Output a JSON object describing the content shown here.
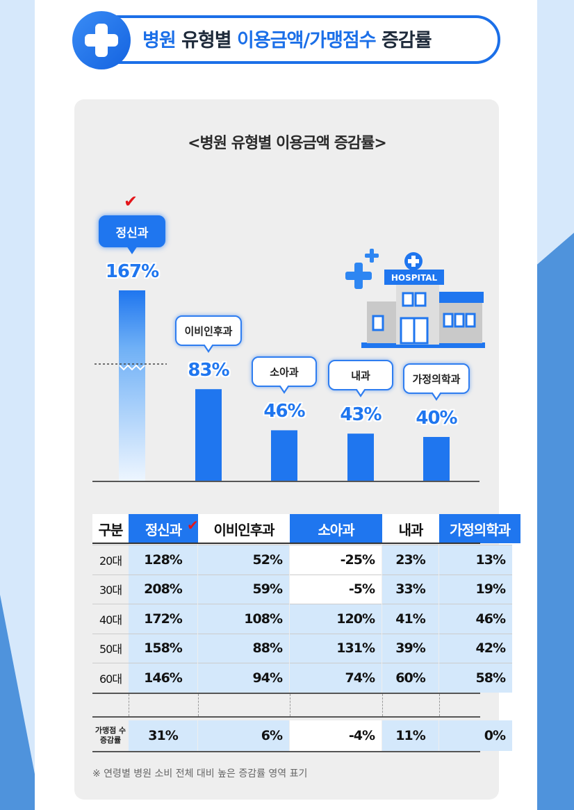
{
  "header": {
    "title_part1": "병원",
    "title_part2": " 유형별 ",
    "title_part3": "이용금액/가맹점수",
    "title_part4": " 증감률"
  },
  "chart_title": "<병원 유형별 이용금액 증감률>",
  "hospital_sign": "HOSPITAL",
  "colors": {
    "primary_blue": "#1f76ef",
    "header_blue": "#1b6fe8",
    "light_blue_cell": "#d4e8fb",
    "check_red": "#e3151a",
    "panel_gray": "#eeeeee"
  },
  "chart_data": {
    "type": "bar",
    "title": "<병원 유형별 이용금액 증감률>",
    "categories": [
      "정신과",
      "이비인후과",
      "소아과",
      "내과",
      "가정의학과"
    ],
    "values": [
      167,
      83,
      46,
      43,
      40
    ],
    "value_labels": [
      "167%",
      "83%",
      "46%",
      "43%",
      "40%"
    ],
    "highlight": "정신과",
    "axis_break": true
  },
  "table": {
    "headers": [
      "구분",
      "정신과",
      "이비인후과",
      "소아과",
      "내과",
      "가정의학과"
    ],
    "rows": [
      {
        "label": "20대",
        "values": [
          "128%",
          "52%",
          "-25%",
          "23%",
          "13%"
        ]
      },
      {
        "label": "30대",
        "values": [
          "208%",
          "59%",
          "-5%",
          "33%",
          "19%"
        ]
      },
      {
        "label": "40대",
        "values": [
          "172%",
          "108%",
          "120%",
          "41%",
          "46%"
        ]
      },
      {
        "label": "50대",
        "values": [
          "158%",
          "88%",
          "131%",
          "39%",
          "42%"
        ]
      },
      {
        "label": "60대",
        "values": [
          "146%",
          "94%",
          "74%",
          "60%",
          "58%"
        ]
      }
    ],
    "franchise_label_line1": "가맹점 수",
    "franchise_label_line2": "증감률",
    "franchise_values": [
      "31%",
      "6%",
      "-4%",
      "11%",
      "0%"
    ]
  },
  "note": "※ 연령별 병원 소비 전체 대비 높은 증감률 영역 표기"
}
